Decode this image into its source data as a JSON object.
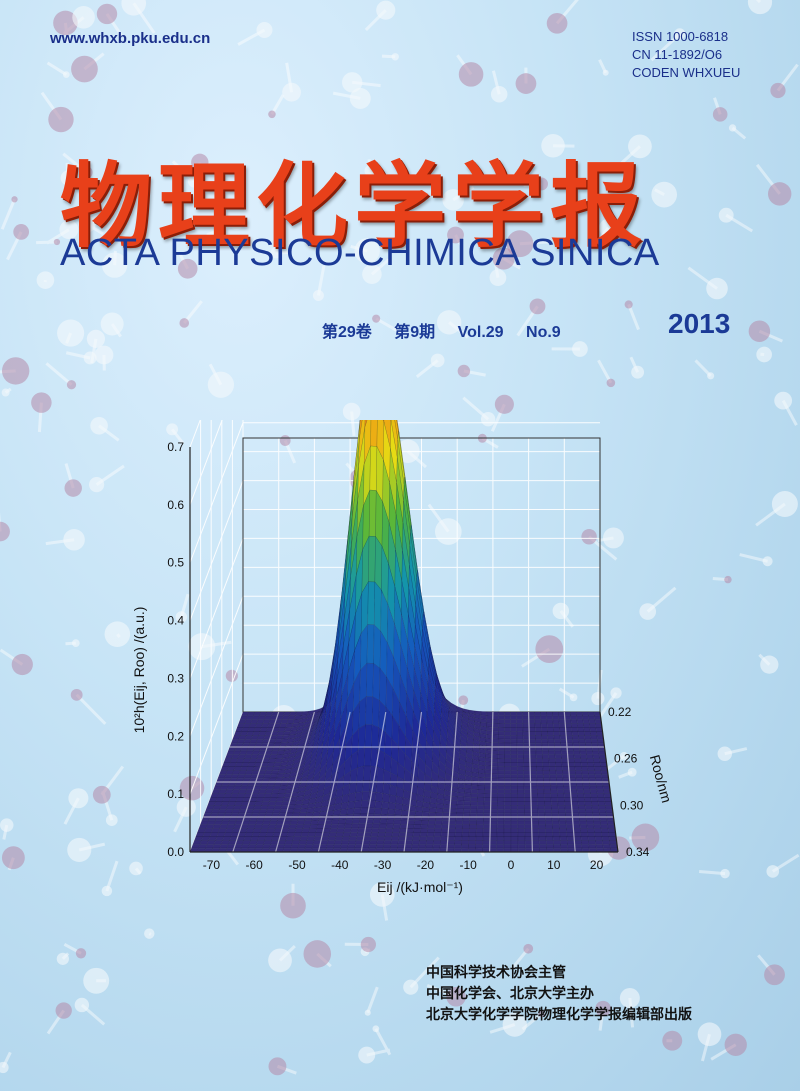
{
  "header": {
    "website": "www.whxb.pku.edu.cn",
    "issn": "ISSN 1000-6818",
    "cn": "CN 11-1892/O6",
    "coden": "CODEN WHXUEU"
  },
  "title": {
    "chinese": "物理化学学报",
    "english": "ACTA PHYSICO-CHIMICA SINICA"
  },
  "issue": {
    "volume_cn": "第29卷",
    "number_cn": "第9期",
    "volume_en": "Vol.29",
    "number_en": "No.9",
    "year": "2013"
  },
  "publishers": [
    "中国科学技术协会主管",
    "中国化学会、北京大学主办",
    "北京大学化学学院物理化学学报编辑部出版"
  ],
  "chart_data": {
    "type": "surface-3d",
    "title": "",
    "xlabel": "Eij /(kJ·mol⁻¹)",
    "ylabel": "Roo/nm",
    "zlabel": "10²h(Eij, Roo) /(a.u.)",
    "x_ticks": [
      "-70",
      "-60",
      "-50",
      "-40",
      "-30",
      "-20",
      "-10",
      "0",
      "10",
      "20"
    ],
    "y_ticks": [
      "0.22",
      "0.26",
      "0.30",
      "0.34"
    ],
    "z_ticks": [
      "0.0",
      "0.1",
      "0.2",
      "0.3",
      "0.4",
      "0.5",
      "0.6",
      "0.7"
    ],
    "xlim": [
      -75,
      25
    ],
    "ylim": [
      0.34,
      0.22
    ],
    "zlim": [
      0,
      0.7
    ],
    "peak": {
      "x": -36,
      "y": 0.25,
      "z": 0.7
    }
  }
}
